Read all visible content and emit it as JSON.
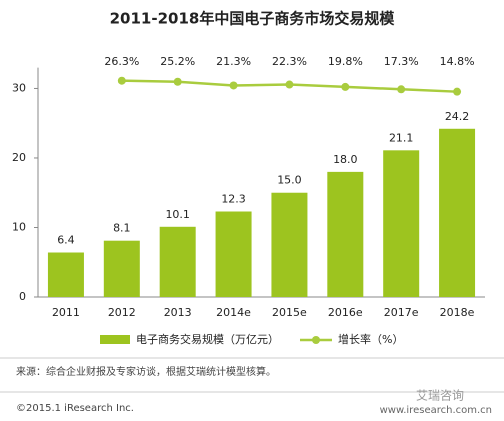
{
  "chart_data": {
    "type": "bar_line",
    "title": "2011-2018年中国电子商务市场交易规模",
    "categories": [
      "2011",
      "2012",
      "2013",
      "2014e",
      "2015e",
      "2016e",
      "2017e",
      "2018e"
    ],
    "series": [
      {
        "name": "电子商务交易规模（万亿元）",
        "color": "#9dc41f",
        "values": [
          6.4,
          8.1,
          10.1,
          12.3,
          15.0,
          18.0,
          21.1,
          24.2
        ],
        "value_labels": [
          "6.4",
          "8.1",
          "10.1",
          "12.3",
          "15.0",
          "18.0",
          "21.1",
          "24.2"
        ]
      },
      {
        "name": "增长率（%）",
        "color": "#a9cc3e",
        "axis": "y2",
        "values": [
          null,
          26.3,
          25.2,
          21.3,
          22.3,
          19.8,
          17.3,
          14.8
        ],
        "value_labels": [
          null,
          "26.3%",
          "25.2%",
          "21.3%",
          "22.3%",
          "19.8%",
          "17.3%",
          "14.8%"
        ]
      }
    ],
    "ylim": [
      0,
      33
    ],
    "yticks": [
      0,
      10,
      20,
      30
    ],
    "y2lim": [
      -200,
      40
    ],
    "source": "来源：综合企业财报及专家访谈，根据艾瑞统计模型核算。",
    "copyright": "©2015.1 iResearch Inc.",
    "watermark": "艾瑞咨询",
    "website": "www.iresearch.com.cn"
  }
}
